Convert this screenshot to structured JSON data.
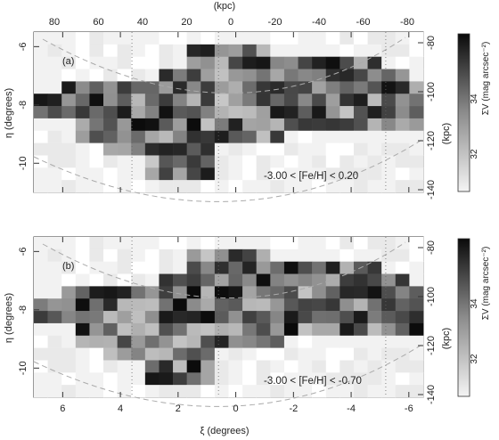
{
  "chart_data": [
    {
      "type": "heatmap",
      "panel_label": "(a)",
      "annotation": "-3.00 < [Fe/H] < 0.20",
      "xlabel": "ξ (degrees)",
      "ylabel": "η (degrees)",
      "top_axis_label": "(kpc)",
      "right_axis_label": "(kpc)",
      "colorbar_label": "ΣV (mag arcsec⁻²)",
      "xlim": [
        7,
        -6.5
      ],
      "ylim": [
        -11,
        -5.5
      ],
      "x_ticks": [
        6,
        4,
        2,
        0,
        -2,
        -4,
        -6
      ],
      "y_ticks": [
        -6,
        -8,
        -10
      ],
      "top_ticks": [
        80,
        60,
        40,
        20,
        0,
        -20,
        -40,
        -60,
        -80
      ],
      "right_ticks": [
        -80,
        -100,
        -120,
        -140
      ],
      "colorbar_ticks": [
        34,
        32
      ],
      "grid": false,
      "grayscale": true,
      "legend": "none"
    },
    {
      "type": "heatmap",
      "panel_label": "(b)",
      "annotation": "-3.00 < [Fe/H] < -0.70",
      "xlabel": "ξ (degrees)",
      "ylabel": "η (degrees)",
      "right_axis_label": "(kpc)",
      "colorbar_label": "ΣV (mag arcsec⁻²)",
      "xlim": [
        7,
        -6.5
      ],
      "ylim": [
        -11,
        -5.5
      ],
      "x_ticks": [
        6,
        4,
        2,
        0,
        -2,
        -4,
        -6
      ],
      "y_ticks": [
        -6,
        -8,
        -10
      ],
      "right_ticks": [
        -80,
        -100,
        -120,
        -140
      ],
      "colorbar_ticks": [
        34,
        32
      ],
      "grid": false,
      "grayscale": true,
      "legend": "none"
    }
  ]
}
